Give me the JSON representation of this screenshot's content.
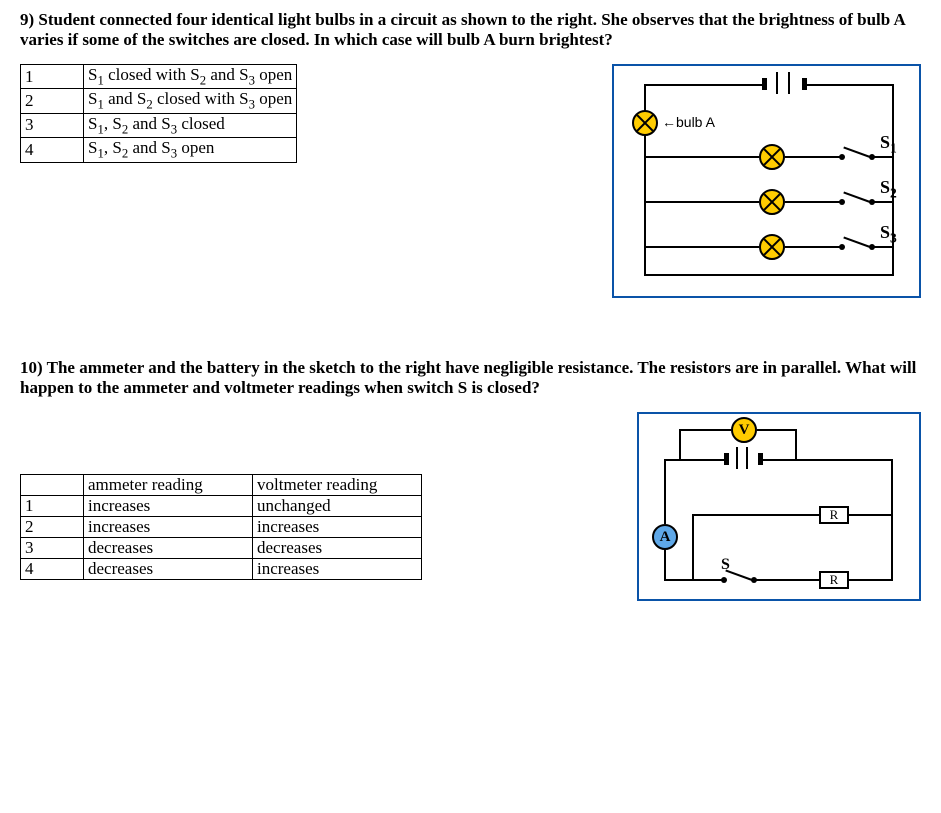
{
  "q9": {
    "number": "9)",
    "text": "Student connected four identical light bulbs in a circuit as shown to the right. She observes that the brightness of bulb A varies if some of the switches are closed. In which case will bulb A burn brightest?",
    "options": [
      {
        "n": "1",
        "t_html": "S<sub>1</sub> closed with S<sub>2</sub> and S<sub>3</sub> open"
      },
      {
        "n": "2",
        "t_html": "S<sub>1</sub> and S<sub>2</sub> closed with S<sub>3</sub> open"
      },
      {
        "n": "3",
        "t_html": "S<sub>1</sub>, S<sub>2</sub> and S<sub>3</sub> closed"
      },
      {
        "n": "4",
        "t_html": "S<sub>1</sub>, S<sub>2</sub> and S<sub>3</sub> open"
      }
    ],
    "labels": {
      "bulbA": "bulb A",
      "s1": "S",
      "s1sub": "1",
      "s2": "S",
      "s2sub": "2",
      "s3": "S",
      "s3sub": "3"
    },
    "style": {
      "border_color": "#0a53a8",
      "bulb_fill": "#fc0",
      "wire_color": "#000"
    }
  },
  "q10": {
    "number": "10)",
    "text": "The ammeter and the battery in the sketch to the right have negligible resistance. The resistors are in parallel. What will happen to the ammeter and voltmeter readings when switch S is closed?",
    "headers": {
      "c1": "ammeter reading",
      "c2": "voltmeter reading"
    },
    "options": [
      {
        "n": "1",
        "a": "increases",
        "v": "unchanged"
      },
      {
        "n": "2",
        "a": "increases",
        "v": "increases"
      },
      {
        "n": "3",
        "a": "decreases",
        "v": "decreases"
      },
      {
        "n": "4",
        "a": "decreases",
        "v": "increases"
      }
    ],
    "labels": {
      "V": "V",
      "A": "A",
      "R": "R",
      "S": "S"
    },
    "style": {
      "border_color": "#0a53a8",
      "meterV_fill": "#fc0",
      "meterA_fill": "#5fa8e8",
      "resistor_fill": "#fff"
    }
  }
}
